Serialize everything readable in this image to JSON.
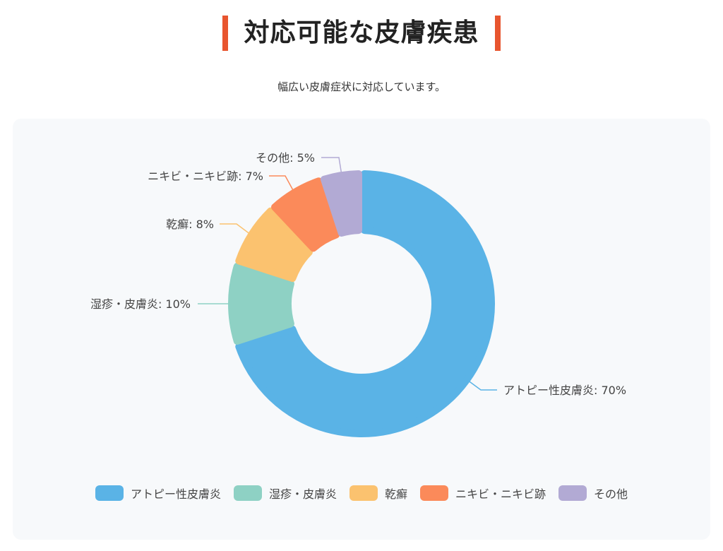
{
  "header": {
    "title": "対応可能な皮膚疾患",
    "subtitle": "幅広い皮膚症状に対応しています。",
    "accent_color": "#e8552f"
  },
  "chart_data": {
    "type": "pie",
    "variant": "donut",
    "title": "対応可能な皮膚疾患",
    "categories": [
      "アトピー性皮膚炎",
      "湿疹・皮膚炎",
      "乾癬",
      "ニキビ・ニキビ跡",
      "その他"
    ],
    "values": [
      70,
      10,
      8,
      7,
      5
    ],
    "unit": "%",
    "colors": [
      "#5ab3e6",
      "#8ed1c4",
      "#fbc26f",
      "#fb8a5a",
      "#b2aad4"
    ],
    "data_labels": [
      "アトピー性皮膚炎: 70%",
      "湿疹・皮膚炎: 10%",
      "乾癬: 8%",
      "ニキビ・ニキビ跡: 7%",
      "その他: 5%"
    ],
    "legend_position": "bottom",
    "start_angle": "top, clockwise"
  },
  "legend": {
    "items": [
      {
        "label": "アトピー性皮膚炎",
        "color": "#5ab3e6"
      },
      {
        "label": "湿疹・皮膚炎",
        "color": "#8ed1c4"
      },
      {
        "label": "乾癬",
        "color": "#fbc26f"
      },
      {
        "label": "ニキビ・ニキビ跡",
        "color": "#fb8a5a"
      },
      {
        "label": "その他",
        "color": "#b2aad4"
      }
    ]
  }
}
